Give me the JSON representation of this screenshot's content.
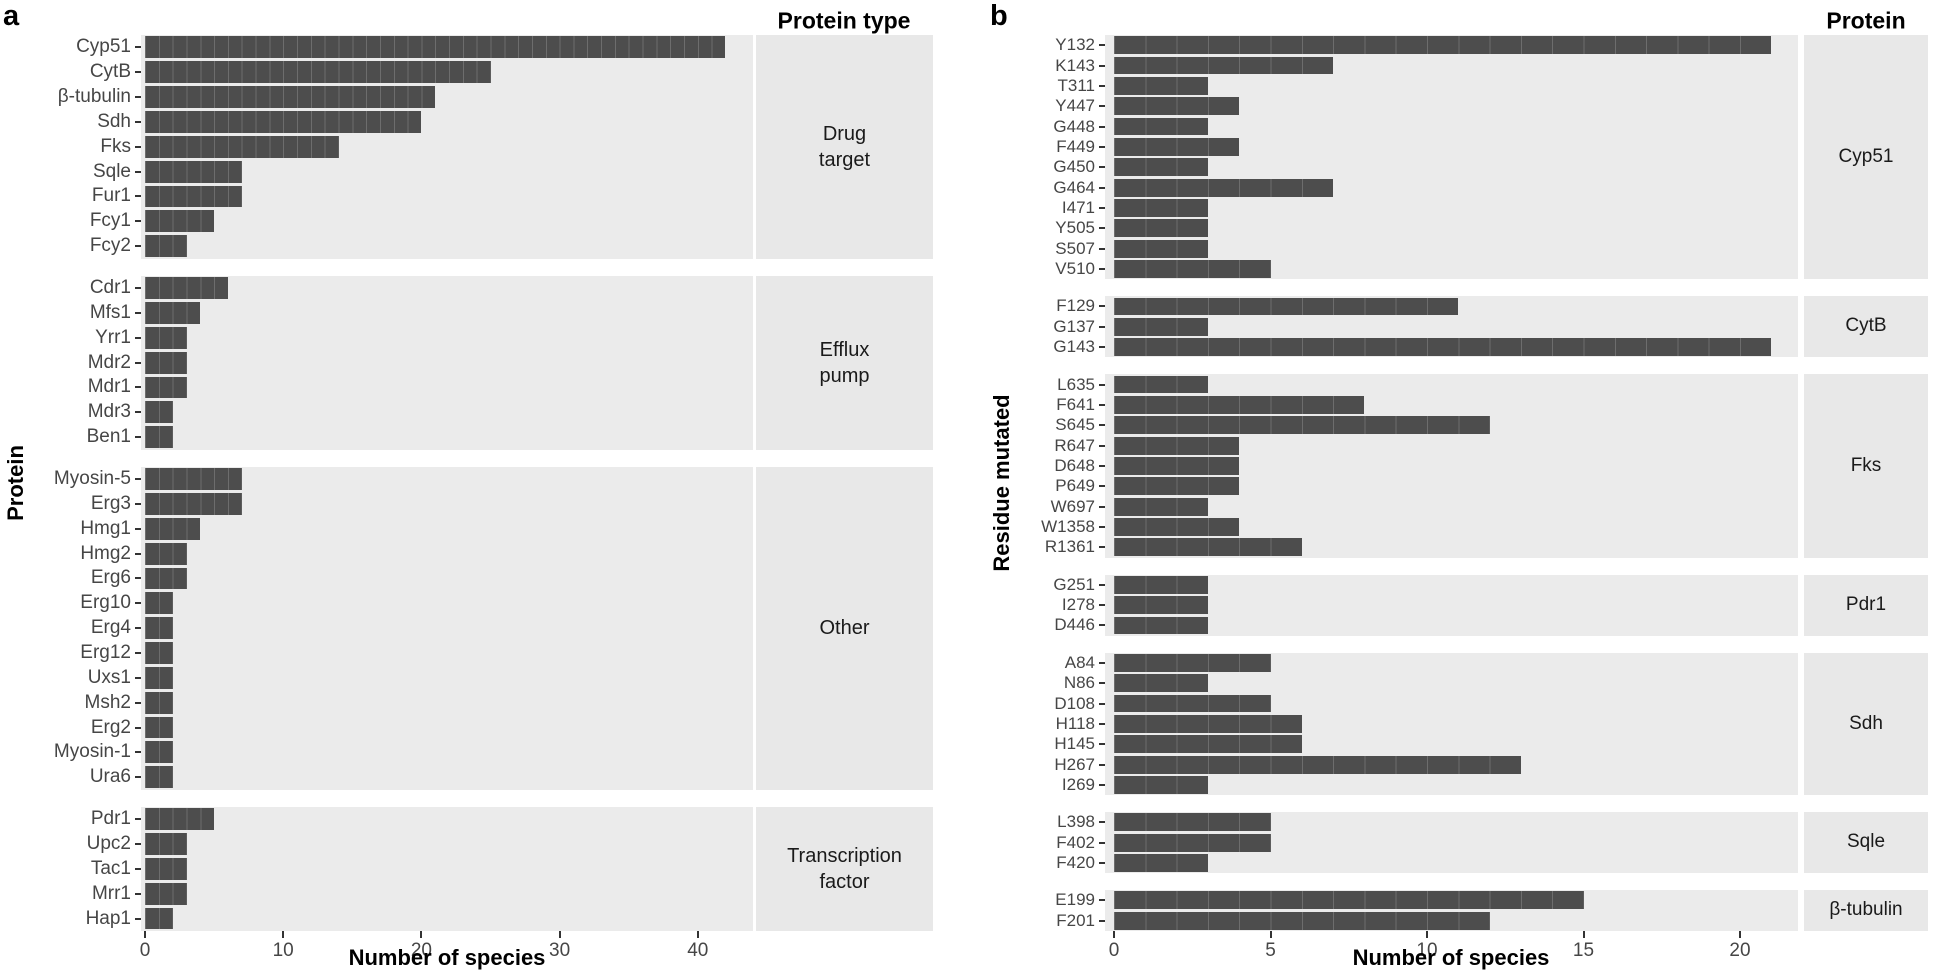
{
  "colors": {
    "bar": "#4D4D4D",
    "panel_bg": "#EBEBEB",
    "strip_bg": "#E8E8E8",
    "tick": "#333333",
    "axis_text": "#464646"
  },
  "chart_data": [
    {
      "panel_label": "a",
      "type": "bar",
      "orientation": "horizontal",
      "xlabel": "Number of species",
      "ylabel": "Protein",
      "facet_header": "Protein type",
      "xlim": [
        0,
        44
      ],
      "x_ticks": [
        0,
        10,
        20,
        30,
        40
      ],
      "grid": "off",
      "legend": "none",
      "facets": [
        {
          "label": "Drug\ntarget",
          "categories": [
            "Cyp51",
            "CytB",
            "β-tubulin",
            "Sdh",
            "Fks",
            "Sqle",
            "Fur1",
            "Fcy1",
            "Fcy2"
          ],
          "values": [
            42,
            25,
            21,
            20,
            14,
            7,
            7,
            5,
            3
          ]
        },
        {
          "label": "Efflux\npump",
          "categories": [
            "Cdr1",
            "Mfs1",
            "Yrr1",
            "Mdr2",
            "Mdr1",
            "Mdr3",
            "Ben1"
          ],
          "values": [
            6,
            4,
            3,
            3,
            3,
            2,
            2
          ]
        },
        {
          "label": "Other",
          "categories": [
            "Myosin-5",
            "Erg3",
            "Hmg1",
            "Hmg2",
            "Erg6",
            "Erg10",
            "Erg4",
            "Erg12",
            "Uxs1",
            "Msh2",
            "Erg2",
            "Myosin-1",
            "Ura6"
          ],
          "values": [
            7,
            7,
            4,
            3,
            3,
            2,
            2,
            2,
            2,
            2,
            2,
            2,
            2
          ]
        },
        {
          "label": "Transcription\nfactor",
          "categories": [
            "Pdr1",
            "Upc2",
            "Tac1",
            "Mrr1",
            "Hap1"
          ],
          "values": [
            5,
            3,
            3,
            3,
            2
          ]
        }
      ]
    },
    {
      "panel_label": "b",
      "type": "bar",
      "orientation": "horizontal",
      "xlabel": "Number of species",
      "ylabel": "Residue mutated",
      "facet_header": "Protein",
      "xlim": [
        0,
        22
      ],
      "x_ticks": [
        0,
        5,
        10,
        15,
        20
      ],
      "grid": "off",
      "legend": "none",
      "facets": [
        {
          "label": "Cyp51",
          "categories": [
            "Y132",
            "K143",
            "T311",
            "Y447",
            "G448",
            "F449",
            "G450",
            "G464",
            "I471",
            "Y505",
            "S507",
            "V510"
          ],
          "values": [
            21,
            7,
            3,
            4,
            3,
            4,
            3,
            7,
            3,
            3,
            3,
            5
          ]
        },
        {
          "label": "CytB",
          "categories": [
            "F129",
            "G137",
            "G143"
          ],
          "values": [
            11,
            3,
            21
          ]
        },
        {
          "label": "Fks",
          "categories": [
            "L635",
            "F641",
            "S645",
            "R647",
            "D648",
            "P649",
            "W697",
            "W1358",
            "R1361"
          ],
          "values": [
            3,
            8,
            12,
            4,
            4,
            4,
            3,
            4,
            6
          ]
        },
        {
          "label": "Pdr1",
          "categories": [
            "G251",
            "I278",
            "D446"
          ],
          "values": [
            3,
            3,
            3
          ]
        },
        {
          "label": "Sdh",
          "categories": [
            "A84",
            "N86",
            "D108",
            "H118",
            "H145",
            "H267",
            "I269"
          ],
          "values": [
            5,
            3,
            5,
            6,
            6,
            13,
            3
          ]
        },
        {
          "label": "Sqle",
          "categories": [
            "L398",
            "F402",
            "F420"
          ],
          "values": [
            5,
            5,
            3
          ]
        },
        {
          "label": "β-tubulin",
          "categories": [
            "E199",
            "F201"
          ],
          "values": [
            15,
            12
          ]
        }
      ]
    }
  ]
}
